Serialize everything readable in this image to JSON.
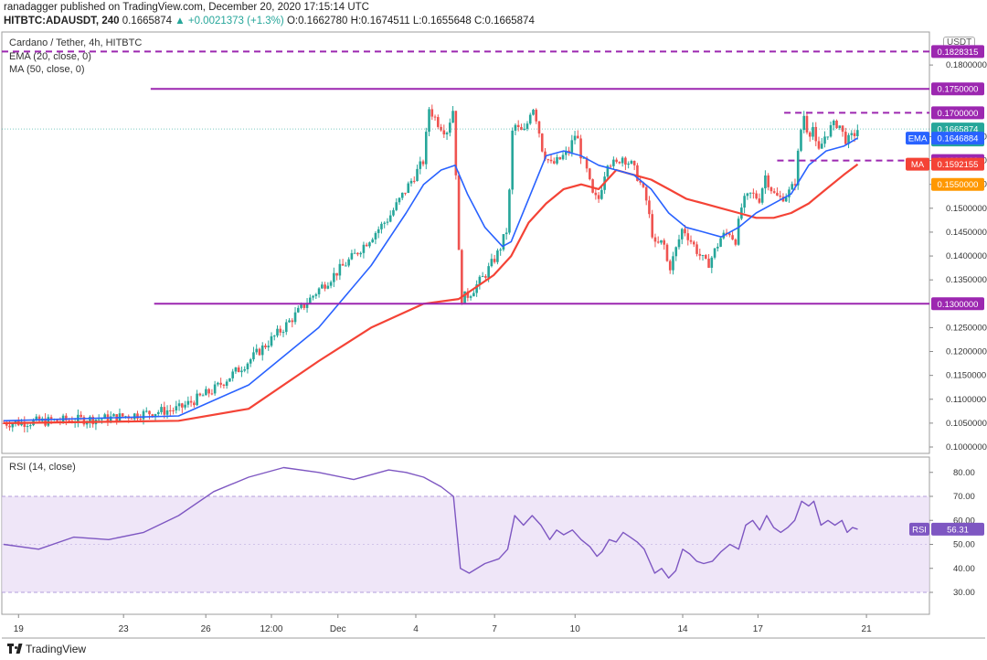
{
  "header": {
    "author_line": "ranadagger published on TradingView.com, December 20, 2020 17:15:14 UTC",
    "symbol": "HITBTC:ADAUSDT, 240",
    "last": "0.1665874",
    "change": "▲ +0.0021373 (+1.3%)",
    "ohlc": "O:0.1662780 H:0.1674511 L:0.1655648 C:0.1665874"
  },
  "legend": {
    "title": "Cardano / Tether, 4h, HITBTC",
    "ema": "EMA (20, close, 0)",
    "ma": "MA (50, close, 0)",
    "rsi": "RSI (14, close)"
  },
  "unit_badge": "USDT",
  "footer": {
    "brand": "TradingView"
  },
  "colors": {
    "up": "#26a69a",
    "down": "#ef5350",
    "ema": "#2962ff",
    "ma": "#f44336",
    "level": "#9c27b0",
    "rsi": "#7e57c2",
    "rsi_band": "#e8dcf5"
  },
  "chart_data": [
    {
      "type": "candlestick",
      "title": "Cardano / Tether, 4h, HITBTC",
      "ylim": [
        0.1,
        0.185
      ],
      "x_ticks": [
        "19",
        "23",
        "26",
        "12:00",
        "Dec",
        "4",
        "7",
        "10",
        "14",
        "17",
        "21"
      ],
      "y_ticks": [
        "0.1800000",
        "0.1650000",
        "0.1600000",
        "0.1550000",
        "0.1500000",
        "0.1450000",
        "0.1400000",
        "0.1350000",
        "0.1250000",
        "0.1200000",
        "0.1150000",
        "0.1100000",
        "0.1050000",
        "0.1000000"
      ],
      "horizontal_levels": [
        {
          "value": 0.1828315,
          "label": "0.1828315",
          "style": "dashed"
        },
        {
          "value": 0.175,
          "label": "0.1750000",
          "style": "solid"
        },
        {
          "value": 0.17,
          "label": "0.1700000",
          "style": "dashed"
        },
        {
          "value": 0.16,
          "label": "0.1600000",
          "style": "dashed"
        },
        {
          "value": 0.155,
          "label": "0.1550000",
          "style": "none"
        },
        {
          "value": 0.13,
          "label": "0.1300000",
          "style": "solid"
        }
      ],
      "price_labels": [
        {
          "name": "",
          "value": 0.1665874,
          "label": "0.1665874",
          "sub": "02:44:51",
          "color": "#26a69a"
        },
        {
          "name": "EMA",
          "value": 0.1646884,
          "label": "0.1646884",
          "color": "#2962ff"
        },
        {
          "name": "MA",
          "value": 0.1592155,
          "label": "0.1592155",
          "color": "#f44336"
        }
      ],
      "price_path": [
        [
          0,
          0.105
        ],
        [
          6,
          0.106
        ],
        [
          10,
          0.108
        ],
        [
          12,
          0.112
        ],
        [
          14,
          0.118
        ],
        [
          16,
          0.125
        ],
        [
          18,
          0.133
        ],
        [
          20,
          0.14
        ],
        [
          22,
          0.148
        ],
        [
          23,
          0.154
        ],
        [
          24,
          0.16
        ],
        [
          24.3,
          0.171
        ],
        [
          24.8,
          0.168
        ],
        [
          25.3,
          0.166
        ],
        [
          25.7,
          0.171
        ],
        [
          25.9,
          0.152
        ],
        [
          26.1,
          0.131
        ],
        [
          26.6,
          0.132
        ],
        [
          27.5,
          0.136
        ],
        [
          28.3,
          0.141
        ],
        [
          28.8,
          0.146
        ],
        [
          29.1,
          0.168
        ],
        [
          29.5,
          0.166
        ],
        [
          29.8,
          0.166
        ],
        [
          30.2,
          0.172
        ],
        [
          30.5,
          0.168
        ],
        [
          30.8,
          0.162
        ],
        [
          31.3,
          0.159
        ],
        [
          31.7,
          0.16
        ],
        [
          32,
          0.161
        ],
        [
          32.3,
          0.162
        ],
        [
          32.7,
          0.166
        ],
        [
          33,
          0.161
        ],
        [
          33.3,
          0.158
        ],
        [
          33.7,
          0.152
        ],
        [
          34,
          0.152
        ],
        [
          34.5,
          0.16
        ],
        [
          35,
          0.159
        ],
        [
          35.3,
          0.161
        ],
        [
          35.6,
          0.16
        ],
        [
          35.9,
          0.159
        ],
        [
          36.3,
          0.156
        ],
        [
          36.7,
          0.152
        ],
        [
          37.2,
          0.142
        ],
        [
          37.7,
          0.143
        ],
        [
          38,
          0.137
        ],
        [
          38.3,
          0.14
        ],
        [
          38.8,
          0.146
        ],
        [
          39.3,
          0.143
        ],
        [
          39.8,
          0.14
        ],
        [
          40.2,
          0.138
        ],
        [
          40.5,
          0.14
        ],
        [
          41,
          0.144
        ],
        [
          41.5,
          0.145
        ],
        [
          41.8,
          0.143
        ],
        [
          42.2,
          0.151
        ],
        [
          42.7,
          0.153
        ],
        [
          43.2,
          0.152
        ],
        [
          43.5,
          0.157
        ],
        [
          44,
          0.153
        ],
        [
          44.3,
          0.152
        ],
        [
          44.8,
          0.153
        ],
        [
          45.2,
          0.155
        ],
        [
          45.5,
          0.165
        ],
        [
          45.7,
          0.17
        ],
        [
          46,
          0.165
        ],
        [
          46.2,
          0.168
        ],
        [
          46.5,
          0.161
        ],
        [
          46.9,
          0.165
        ],
        [
          47.3,
          0.167
        ],
        [
          47.7,
          0.168
        ],
        [
          48,
          0.165
        ],
        [
          48.2,
          0.164
        ],
        [
          48.5,
          0.165
        ],
        [
          48.8,
          0.1666
        ]
      ],
      "ema_path": [
        [
          0,
          0.1055
        ],
        [
          10,
          0.1065
        ],
        [
          14,
          0.113
        ],
        [
          18,
          0.125
        ],
        [
          21,
          0.138
        ],
        [
          23,
          0.149
        ],
        [
          24,
          0.155
        ],
        [
          25,
          0.158
        ],
        [
          25.8,
          0.159
        ],
        [
          26.5,
          0.153
        ],
        [
          27.5,
          0.146
        ],
        [
          28.5,
          0.142
        ],
        [
          29,
          0.143
        ],
        [
          30,
          0.152
        ],
        [
          31,
          0.161
        ],
        [
          32,
          0.162
        ],
        [
          33,
          0.161
        ],
        [
          34,
          0.159
        ],
        [
          35,
          0.158
        ],
        [
          36,
          0.157
        ],
        [
          37,
          0.154
        ],
        [
          38,
          0.149
        ],
        [
          39,
          0.146
        ],
        [
          40,
          0.145
        ],
        [
          41,
          0.144
        ],
        [
          42,
          0.146
        ],
        [
          43,
          0.149
        ],
        [
          44,
          0.151
        ],
        [
          45,
          0.153
        ],
        [
          46,
          0.159
        ],
        [
          47,
          0.162
        ],
        [
          48,
          0.163
        ],
        [
          48.8,
          0.1647
        ]
      ],
      "ma_path": [
        [
          0,
          0.105
        ],
        [
          10,
          0.1055
        ],
        [
          14,
          0.108
        ],
        [
          18,
          0.118
        ],
        [
          21,
          0.125
        ],
        [
          24,
          0.13
        ],
        [
          26,
          0.131
        ],
        [
          28,
          0.136
        ],
        [
          29,
          0.14
        ],
        [
          30,
          0.147
        ],
        [
          31,
          0.151
        ],
        [
          32,
          0.154
        ],
        [
          33,
          0.155
        ],
        [
          34,
          0.154
        ],
        [
          35,
          0.158
        ],
        [
          36,
          0.157
        ],
        [
          37,
          0.156
        ],
        [
          38,
          0.154
        ],
        [
          39,
          0.152
        ],
        [
          40,
          0.151
        ],
        [
          41,
          0.15
        ],
        [
          42,
          0.149
        ],
        [
          43,
          0.148
        ],
        [
          44,
          0.148
        ],
        [
          45,
          0.149
        ],
        [
          46,
          0.151
        ],
        [
          47,
          0.154
        ],
        [
          48,
          0.157
        ],
        [
          48.8,
          0.1592
        ]
      ]
    },
    {
      "type": "line",
      "title": "RSI (14, close)",
      "ylim": [
        24,
        86
      ],
      "y_ticks": [
        "80.00",
        "70.00",
        "60.00",
        "50.00",
        "40.00",
        "30.00"
      ],
      "band": [
        30,
        70
      ],
      "last_value": "56.31",
      "last_label": "RSI",
      "rsi_path": [
        [
          0,
          50
        ],
        [
          2,
          48
        ],
        [
          4,
          53
        ],
        [
          6,
          52
        ],
        [
          8,
          55
        ],
        [
          10,
          62
        ],
        [
          12,
          72
        ],
        [
          14,
          78
        ],
        [
          16,
          82
        ],
        [
          18,
          80
        ],
        [
          20,
          77
        ],
        [
          22,
          81
        ],
        [
          23,
          80
        ],
        [
          24,
          78
        ],
        [
          25,
          74
        ],
        [
          25.7,
          70
        ],
        [
          26.1,
          40
        ],
        [
          26.6,
          38
        ],
        [
          27.5,
          42
        ],
        [
          28.3,
          44
        ],
        [
          28.8,
          48
        ],
        [
          29.2,
          62
        ],
        [
          29.7,
          58
        ],
        [
          30.2,
          62
        ],
        [
          30.7,
          58
        ],
        [
          31.2,
          52
        ],
        [
          31.6,
          56
        ],
        [
          32,
          54
        ],
        [
          32.5,
          56
        ],
        [
          33,
          52
        ],
        [
          33.5,
          49
        ],
        [
          33.9,
          45
        ],
        [
          34.2,
          47
        ],
        [
          34.6,
          52
        ],
        [
          35,
          51
        ],
        [
          35.4,
          55
        ],
        [
          35.8,
          53
        ],
        [
          36.2,
          51
        ],
        [
          36.6,
          48
        ],
        [
          37.2,
          38
        ],
        [
          37.6,
          40
        ],
        [
          38,
          36
        ],
        [
          38.4,
          39
        ],
        [
          38.8,
          48
        ],
        [
          39.2,
          46
        ],
        [
          39.6,
          43
        ],
        [
          40,
          42
        ],
        [
          40.5,
          43
        ],
        [
          41,
          47
        ],
        [
          41.5,
          50
        ],
        [
          42,
          48
        ],
        [
          42.4,
          58
        ],
        [
          42.8,
          60
        ],
        [
          43.2,
          56
        ],
        [
          43.6,
          62
        ],
        [
          44,
          57
        ],
        [
          44.4,
          55
        ],
        [
          44.8,
          57
        ],
        [
          45.2,
          60
        ],
        [
          45.6,
          68
        ],
        [
          46,
          66
        ],
        [
          46.3,
          68
        ],
        [
          46.7,
          58
        ],
        [
          47.1,
          60
        ],
        [
          47.5,
          58
        ],
        [
          47.9,
          60
        ],
        [
          48.2,
          55
        ],
        [
          48.5,
          57
        ],
        [
          48.8,
          56.31
        ]
      ]
    }
  ]
}
